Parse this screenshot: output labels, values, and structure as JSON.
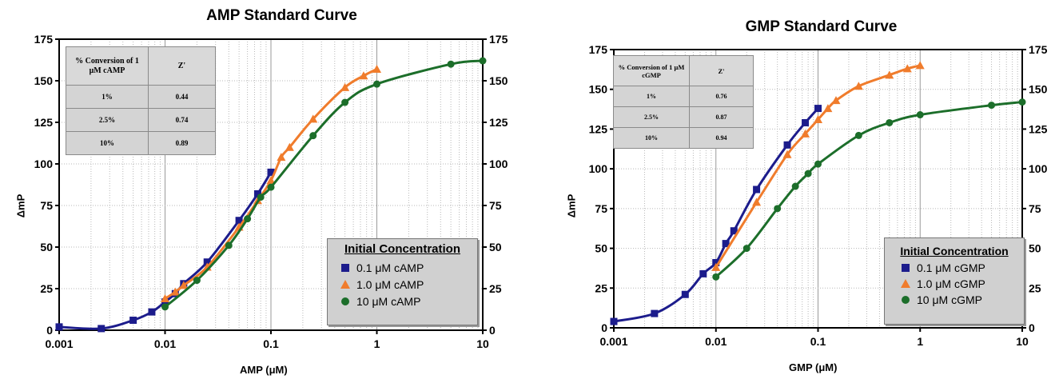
{
  "chart_data": [
    {
      "type": "scatter",
      "title": "AMP Standard Curve",
      "xlabel": "AMP (μM)",
      "ylabel": "ΔmP",
      "x_scale": "log",
      "xlim": [
        0.001,
        10
      ],
      "ylim": [
        0,
        175
      ],
      "x_ticks": [
        "0.001",
        "0.01",
        "0.1",
        "1",
        "10"
      ],
      "y_ticks": [
        "0",
        "25",
        "50",
        "75",
        "100",
        "125",
        "150",
        "175"
      ],
      "grid": true,
      "legend": {
        "title": "Initial Concentration",
        "placement": "bottom-right"
      },
      "table": {
        "headers": [
          "% Conversion of 1 μM cAMP",
          "Z'"
        ],
        "rows": [
          [
            "1%",
            "0.44"
          ],
          [
            "2.5%",
            "0.74"
          ],
          [
            "10%",
            "0.89"
          ]
        ],
        "placement": "top-left"
      },
      "series": [
        {
          "name": "0.1 μM cAMP",
          "color": "#1c1c8c",
          "marker": "square",
          "x": [
            0.001,
            0.0025,
            0.005,
            0.0075,
            0.01,
            0.0125,
            0.015,
            0.025,
            0.05,
            0.075,
            0.1
          ],
          "y": [
            2,
            1,
            6,
            11,
            17,
            22,
            28,
            41,
            66,
            82,
            95
          ]
        },
        {
          "name": "1.0 μM cAMP",
          "color": "#f07c2c",
          "marker": "triangle",
          "x": [
            0.01,
            0.0125,
            0.015,
            0.025,
            0.05,
            0.075,
            0.1,
            0.125,
            0.15,
            0.25,
            0.5,
            0.75,
            1
          ],
          "y": [
            19,
            23,
            27,
            38,
            62,
            78,
            90,
            104,
            110,
            127,
            146,
            153,
            157
          ]
        },
        {
          "name": "10 μM cAMP",
          "color": "#1c6e2a",
          "marker": "circle",
          "x": [
            0.01,
            0.02,
            0.04,
            0.06,
            0.08,
            0.1,
            0.25,
            0.5,
            1,
            5,
            10
          ],
          "y": [
            14,
            30,
            51,
            67,
            80,
            86,
            117,
            137,
            148,
            160,
            162
          ]
        }
      ]
    },
    {
      "type": "scatter",
      "title": "GMP Standard Curve",
      "xlabel": "GMP (μM)",
      "ylabel": "ΔmP",
      "x_scale": "log",
      "xlim": [
        0.001,
        10
      ],
      "ylim": [
        0,
        175
      ],
      "x_ticks": [
        "0.001",
        "0.01",
        "0.1",
        "1",
        "10"
      ],
      "y_ticks": [
        "0",
        "25",
        "50",
        "75",
        "100",
        "125",
        "150",
        "175"
      ],
      "grid": true,
      "legend": {
        "title": "Initial Concentration",
        "placement": "bottom-right"
      },
      "table": {
        "headers": [
          "% Conversion of 1 μM cGMP",
          "Z'"
        ],
        "rows": [
          [
            "1%",
            "0.76"
          ],
          [
            "2.5%",
            "0.87"
          ],
          [
            "10%",
            "0.94"
          ]
        ],
        "placement": "top-left"
      },
      "series": [
        {
          "name": "0.1 μM cGMP",
          "color": "#1c1c8c",
          "marker": "square",
          "x": [
            0.001,
            0.0025,
            0.005,
            0.0075,
            0.01,
            0.0125,
            0.015,
            0.025,
            0.05,
            0.075,
            0.1
          ],
          "y": [
            4,
            9,
            21,
            34,
            41,
            53,
            61,
            87,
            115,
            129,
            138
          ]
        },
        {
          "name": "1.0 μM cGMP",
          "color": "#f07c2c",
          "marker": "triangle",
          "x": [
            0.01,
            0.025,
            0.05,
            0.075,
            0.1,
            0.125,
            0.15,
            0.25,
            0.5,
            0.75,
            1
          ],
          "y": [
            38,
            79,
            109,
            122,
            131,
            138,
            143,
            152,
            159,
            163,
            165
          ]
        },
        {
          "name": "10 μM cGMP",
          "color": "#1c6e2a",
          "marker": "circle",
          "x": [
            0.01,
            0.02,
            0.04,
            0.06,
            0.08,
            0.1,
            0.25,
            0.5,
            1,
            5,
            10
          ],
          "y": [
            32,
            50,
            75,
            89,
            97,
            103,
            121,
            129,
            134,
            140,
            142
          ]
        }
      ]
    }
  ]
}
